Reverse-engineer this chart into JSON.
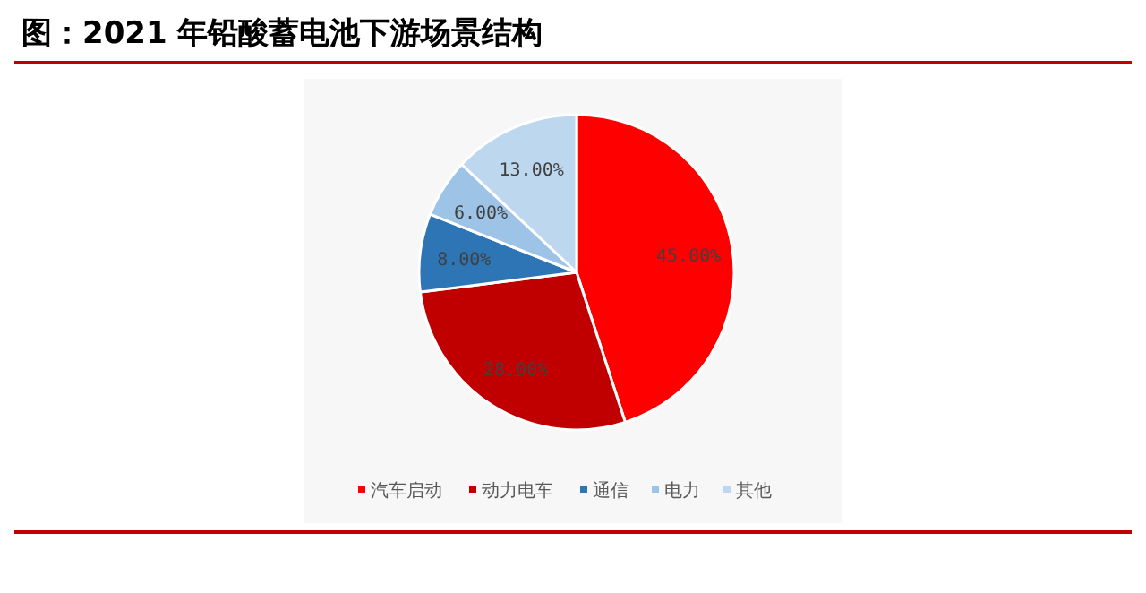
{
  "chart_data": {
    "type": "pie",
    "title": "图：2021 年铅酸蓄电池下游场景结构",
    "categories": [
      "汽车启动",
      "动力电车",
      "通信",
      "电力",
      "其他"
    ],
    "values": [
      45,
      28,
      8,
      6,
      13
    ],
    "value_labels": [
      "45.00%",
      "28.00%",
      "8.00%",
      "6.00%",
      "13.00%"
    ],
    "colors": [
      "#ff0000",
      "#c00000",
      "#2e75b6",
      "#9dc3e6",
      "#bdd7ee"
    ],
    "legend": "bottom"
  }
}
